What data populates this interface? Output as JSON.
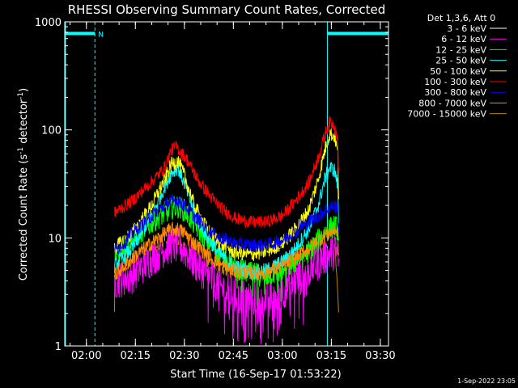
{
  "chart_data": {
    "type": "line",
    "title": "RHESSI Observing Summary Count Rates, Corrected",
    "xlabel": "Start Time (16-Sep-17 01:53:22)",
    "ylabel": "Corrected Count Rate (s",
    "ylabel_sup1": "-1",
    "ylabel_mid": " detector",
    "ylabel_sup2": "-1",
    "ylabel_end": ")",
    "yscale": "log",
    "ylim": [
      1,
      1000
    ],
    "y_ticks": [
      {
        "value": 1,
        "label": "1"
      },
      {
        "value": 10,
        "label": "10"
      },
      {
        "value": 100,
        "label": "100"
      },
      {
        "value": 1000,
        "label": "1000"
      }
    ],
    "x_range_minutes": [
      113.37,
      212.5
    ],
    "x_ticks": [
      {
        "minutes": 120,
        "label": "02:00"
      },
      {
        "minutes": 135,
        "label": "02:15"
      },
      {
        "minutes": 150,
        "label": "02:30"
      },
      {
        "minutes": 165,
        "label": "02:45"
      },
      {
        "minutes": 180,
        "label": "03:00"
      },
      {
        "minutes": 195,
        "label": "03:15"
      },
      {
        "minutes": 210,
        "label": "03:30"
      }
    ],
    "legend": {
      "header": "Det 1,3,6, Att 0",
      "placement": "right",
      "entries": [
        {
          "label": "3 - 6 keV",
          "color": "#ffffff"
        },
        {
          "label": "6 - 12 keV",
          "color": "#ff00ff"
        },
        {
          "label": "12 - 25 keV",
          "color": "#00ff00"
        },
        {
          "label": "25 - 50 keV",
          "color": "#00ffff"
        },
        {
          "label": "50 - 100 keV",
          "color": "#ffff00"
        },
        {
          "label": "100 - 300 keV",
          "color": "#ff0000"
        },
        {
          "label": "300 - 800 keV",
          "color": "#0000ff"
        },
        {
          "label": "800 - 7000 keV",
          "color": "#ff8c00"
        },
        {
          "label": "7000 - 15000 keV",
          "color": "#b8860b"
        }
      ]
    },
    "night_intervals_minutes": [
      [
        113.37,
        122.6
      ],
      [
        193.8,
        212.5
      ]
    ],
    "saa_bar_marker": "N",
    "series": [
      {
        "label": "3 - 6 keV",
        "color": "#000000",
        "noise": 0.15,
        "points": [
          [
            128.6,
            5
          ],
          [
            134,
            6
          ],
          [
            140,
            8.5
          ],
          [
            144,
            10.5
          ],
          [
            146,
            11
          ],
          [
            148,
            11
          ],
          [
            150,
            10
          ],
          [
            153,
            8.2
          ],
          [
            157,
            6.5
          ],
          [
            161,
            5.3
          ],
          [
            165,
            4.8
          ],
          [
            170,
            4.5
          ],
          [
            175,
            4.6
          ],
          [
            180,
            5
          ],
          [
            184,
            6
          ],
          [
            188,
            7
          ],
          [
            191,
            8.5
          ],
          [
            194,
            9.5
          ],
          [
            196,
            9.5
          ],
          [
            197,
            8.5
          ],
          [
            197.3,
            6
          ]
        ]
      },
      {
        "label": "6 - 12 keV",
        "color": "#ff00ff",
        "noise": 0.35,
        "points": [
          [
            128.6,
            4
          ],
          [
            134,
            4.5
          ],
          [
            140,
            6.5
          ],
          [
            144,
            8
          ],
          [
            146,
            8.5
          ],
          [
            148,
            8.5
          ],
          [
            150,
            7.8
          ],
          [
            153,
            6
          ],
          [
            157,
            4.5
          ],
          [
            161,
            3.5
          ],
          [
            165,
            3
          ],
          [
            170,
            2.8
          ],
          [
            175,
            2.8
          ],
          [
            180,
            3.2
          ],
          [
            184,
            4
          ],
          [
            188,
            5
          ],
          [
            191,
            6
          ],
          [
            194,
            7
          ],
          [
            196,
            7.5
          ],
          [
            197,
            7
          ],
          [
            197.3,
            5
          ]
        ]
      },
      {
        "label": "12 - 25 keV",
        "color": "#00ff00",
        "noise": 0.22,
        "points": [
          [
            128.6,
            7
          ],
          [
            134,
            9.5
          ],
          [
            140,
            14
          ],
          [
            144,
            17
          ],
          [
            146,
            19
          ],
          [
            148,
            19.5
          ],
          [
            150,
            18
          ],
          [
            153,
            13.5
          ],
          [
            157,
            9.5
          ],
          [
            161,
            7
          ],
          [
            165,
            5.5
          ],
          [
            170,
            4.7
          ],
          [
            175,
            4.5
          ],
          [
            180,
            5
          ],
          [
            184,
            6
          ],
          [
            188,
            7.5
          ],
          [
            191,
            9.5
          ],
          [
            194,
            12
          ],
          [
            196,
            13
          ],
          [
            197,
            12
          ],
          [
            197.3,
            7
          ]
        ]
      },
      {
        "label": "25 - 50 keV",
        "color": "#00ffff",
        "noise": 0.14,
        "points": [
          [
            128.6,
            5.5
          ],
          [
            134,
            8
          ],
          [
            140,
            16
          ],
          [
            144,
            30
          ],
          [
            146,
            40
          ],
          [
            148,
            45
          ],
          [
            150,
            32
          ],
          [
            153,
            17
          ],
          [
            157,
            10
          ],
          [
            161,
            7
          ],
          [
            165,
            5.5
          ],
          [
            170,
            4.8
          ],
          [
            175,
            5
          ],
          [
            180,
            6
          ],
          [
            184,
            8
          ],
          [
            188,
            12
          ],
          [
            191,
            20
          ],
          [
            193,
            35
          ],
          [
            194.5,
            45
          ],
          [
            196,
            42
          ],
          [
            197,
            30
          ],
          [
            197.3,
            12
          ]
        ]
      },
      {
        "label": "50 - 100 keV",
        "color": "#ffff00",
        "noise": 0.14,
        "points": [
          [
            128.6,
            8
          ],
          [
            134,
            11
          ],
          [
            140,
            20
          ],
          [
            144,
            35
          ],
          [
            146,
            48
          ],
          [
            148,
            52
          ],
          [
            150,
            38
          ],
          [
            153,
            20
          ],
          [
            157,
            12
          ],
          [
            161,
            9
          ],
          [
            165,
            7.5
          ],
          [
            170,
            7
          ],
          [
            175,
            7.5
          ],
          [
            180,
            9
          ],
          [
            184,
            12
          ],
          [
            188,
            18
          ],
          [
            191,
            35
          ],
          [
            193,
            65
          ],
          [
            194.5,
            92
          ],
          [
            196,
            88
          ],
          [
            197,
            60
          ],
          [
            197.3,
            20
          ]
        ]
      },
      {
        "label": "100 - 300 keV",
        "color": "#ff0000",
        "noise": 0.12,
        "points": [
          [
            128.6,
            17
          ],
          [
            134,
            22
          ],
          [
            140,
            33
          ],
          [
            144,
            45
          ],
          [
            146,
            65
          ],
          [
            147.5,
            70
          ],
          [
            149,
            62
          ],
          [
            151,
            52
          ],
          [
            154,
            35
          ],
          [
            158,
            24
          ],
          [
            162,
            18
          ],
          [
            166,
            15
          ],
          [
            170,
            14
          ],
          [
            175,
            14
          ],
          [
            180,
            16
          ],
          [
            184,
            22
          ],
          [
            188,
            32
          ],
          [
            191,
            55
          ],
          [
            193,
            90
          ],
          [
            194.5,
            118
          ],
          [
            196,
            112
          ],
          [
            197,
            80
          ],
          [
            197.3,
            30
          ]
        ]
      },
      {
        "label": "300 - 800 keV",
        "color": "#0000ff",
        "noise": 0.13,
        "points": [
          [
            128.6,
            7.5
          ],
          [
            134,
            11
          ],
          [
            140,
            16
          ],
          [
            144,
            20
          ],
          [
            146,
            22
          ],
          [
            148,
            22
          ],
          [
            150,
            20
          ],
          [
            153,
            16
          ],
          [
            157,
            12
          ],
          [
            161,
            10
          ],
          [
            165,
            9
          ],
          [
            170,
            8.5
          ],
          [
            175,
            8.5
          ],
          [
            180,
            9.5
          ],
          [
            184,
            11.5
          ],
          [
            188,
            14
          ],
          [
            191,
            16
          ],
          [
            194,
            19
          ],
          [
            196,
            20
          ],
          [
            197,
            19
          ],
          [
            197.3,
            10
          ]
        ]
      },
      {
        "label": "800 - 7000 keV",
        "color": "#ff8c00",
        "noise": 0.14,
        "points": [
          [
            128.6,
            4.5
          ],
          [
            134,
            6.5
          ],
          [
            140,
            9
          ],
          [
            144,
            11
          ],
          [
            146,
            12
          ],
          [
            148,
            12
          ],
          [
            150,
            11.2
          ],
          [
            153,
            9
          ],
          [
            157,
            7
          ],
          [
            161,
            5.6
          ],
          [
            165,
            5
          ],
          [
            170,
            4.8
          ],
          [
            175,
            4.8
          ],
          [
            180,
            5.5
          ],
          [
            184,
            6.5
          ],
          [
            188,
            8
          ],
          [
            191,
            9.5
          ],
          [
            194,
            11
          ],
          [
            196,
            12
          ],
          [
            197,
            11
          ],
          [
            197.3,
            6
          ]
        ]
      },
      {
        "label": "7000 - 15000 keV",
        "color": "#b8860b",
        "noise": 0.1,
        "points": [
          [
            128.6,
            2
          ],
          [
            128.7,
            4.5
          ],
          [
            134,
            6
          ],
          [
            140,
            8
          ],
          [
            146,
            10
          ],
          [
            150,
            9
          ],
          [
            157,
            6
          ],
          [
            165,
            4.5
          ],
          [
            175,
            4.5
          ],
          [
            184,
            6
          ],
          [
            191,
            8
          ],
          [
            196,
            10
          ],
          [
            197.3,
            2
          ]
        ]
      }
    ],
    "corner_stamp": "1-Sep-2022 23:05"
  }
}
